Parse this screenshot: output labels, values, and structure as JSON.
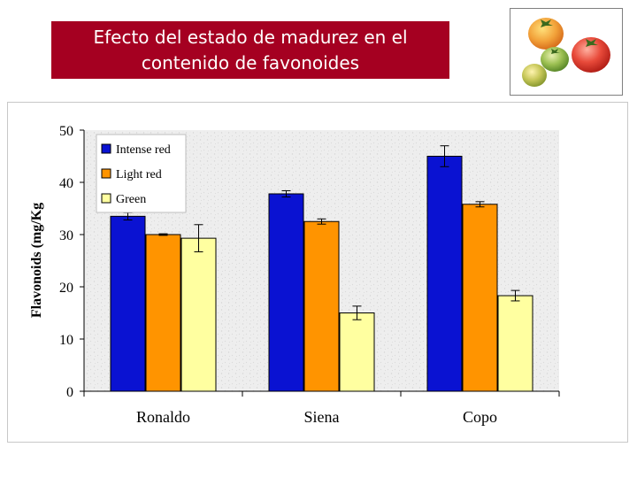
{
  "header": {
    "title_line1": "Efecto del estado de madurez en el",
    "title_line2": "contenido de favonoides"
  },
  "photo": {
    "subject": "tomatoes-ripeness-icon"
  },
  "colors": {
    "title_bg": "#a50021",
    "intense_red": "#0a12d2",
    "light_red": "#ff9400",
    "green": "#ffffa0"
  },
  "chart_data": {
    "type": "bar",
    "title": "",
    "xlabel": "",
    "ylabel": "Flavonoids (mg/Kg",
    "ylim": [
      0,
      50
    ],
    "yticks": [
      "0",
      "10",
      "20",
      "30",
      "40",
      "50"
    ],
    "categories": [
      "Ronaldo",
      "Siena",
      "Copo"
    ],
    "series": [
      {
        "name": "Intense red",
        "color": "#0a12d2",
        "values": [
          33.5,
          37.8,
          45.0
        ],
        "errors": [
          0.7,
          0.6,
          2.0
        ]
      },
      {
        "name": "Light red",
        "color": "#ff9400",
        "values": [
          30.0,
          32.5,
          35.8
        ],
        "errors": [
          0.15,
          0.5,
          0.5
        ]
      },
      {
        "name": "Green",
        "color": "#ffffa0",
        "values": [
          29.3,
          15.0,
          18.3
        ],
        "errors": [
          2.6,
          1.3,
          1.0
        ]
      }
    ],
    "legend_position": "top-left",
    "grid": false
  }
}
